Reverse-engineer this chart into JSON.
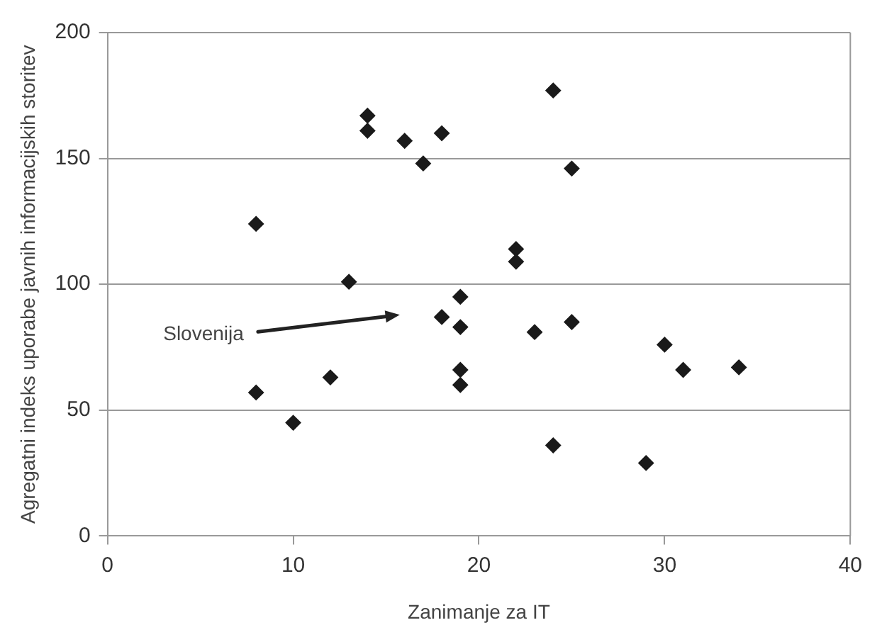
{
  "chart_data": {
    "type": "scatter",
    "xlabel": "Zanimanje za IT",
    "ylabel": "Agregatni indeks uporabe javnih informacijskih storitev",
    "series": [
      {
        "color": "#1a1a1a",
        "x": [
          8,
          8,
          10,
          12,
          13,
          14,
          14,
          16,
          17,
          18,
          18,
          19,
          19,
          19,
          19,
          22,
          22,
          23,
          24,
          24,
          25,
          25,
          29,
          30,
          31,
          34
        ],
        "values": [
          124,
          57,
          45,
          63,
          101,
          167,
          161,
          157,
          148,
          160,
          87,
          95,
          83,
          66,
          60,
          114,
          109,
          81,
          177,
          36,
          146,
          85,
          29,
          76,
          66,
          67
        ]
      }
    ],
    "xlim": [
      0,
      40
    ],
    "xticks": [
      0,
      10,
      20,
      30,
      40
    ],
    "ylim": [
      0,
      200
    ],
    "yticks": [
      0,
      50,
      100,
      150,
      200
    ],
    "grid": "y",
    "marker": "diamond",
    "legend": false,
    "annotations": [
      "Slovenija"
    ]
  }
}
